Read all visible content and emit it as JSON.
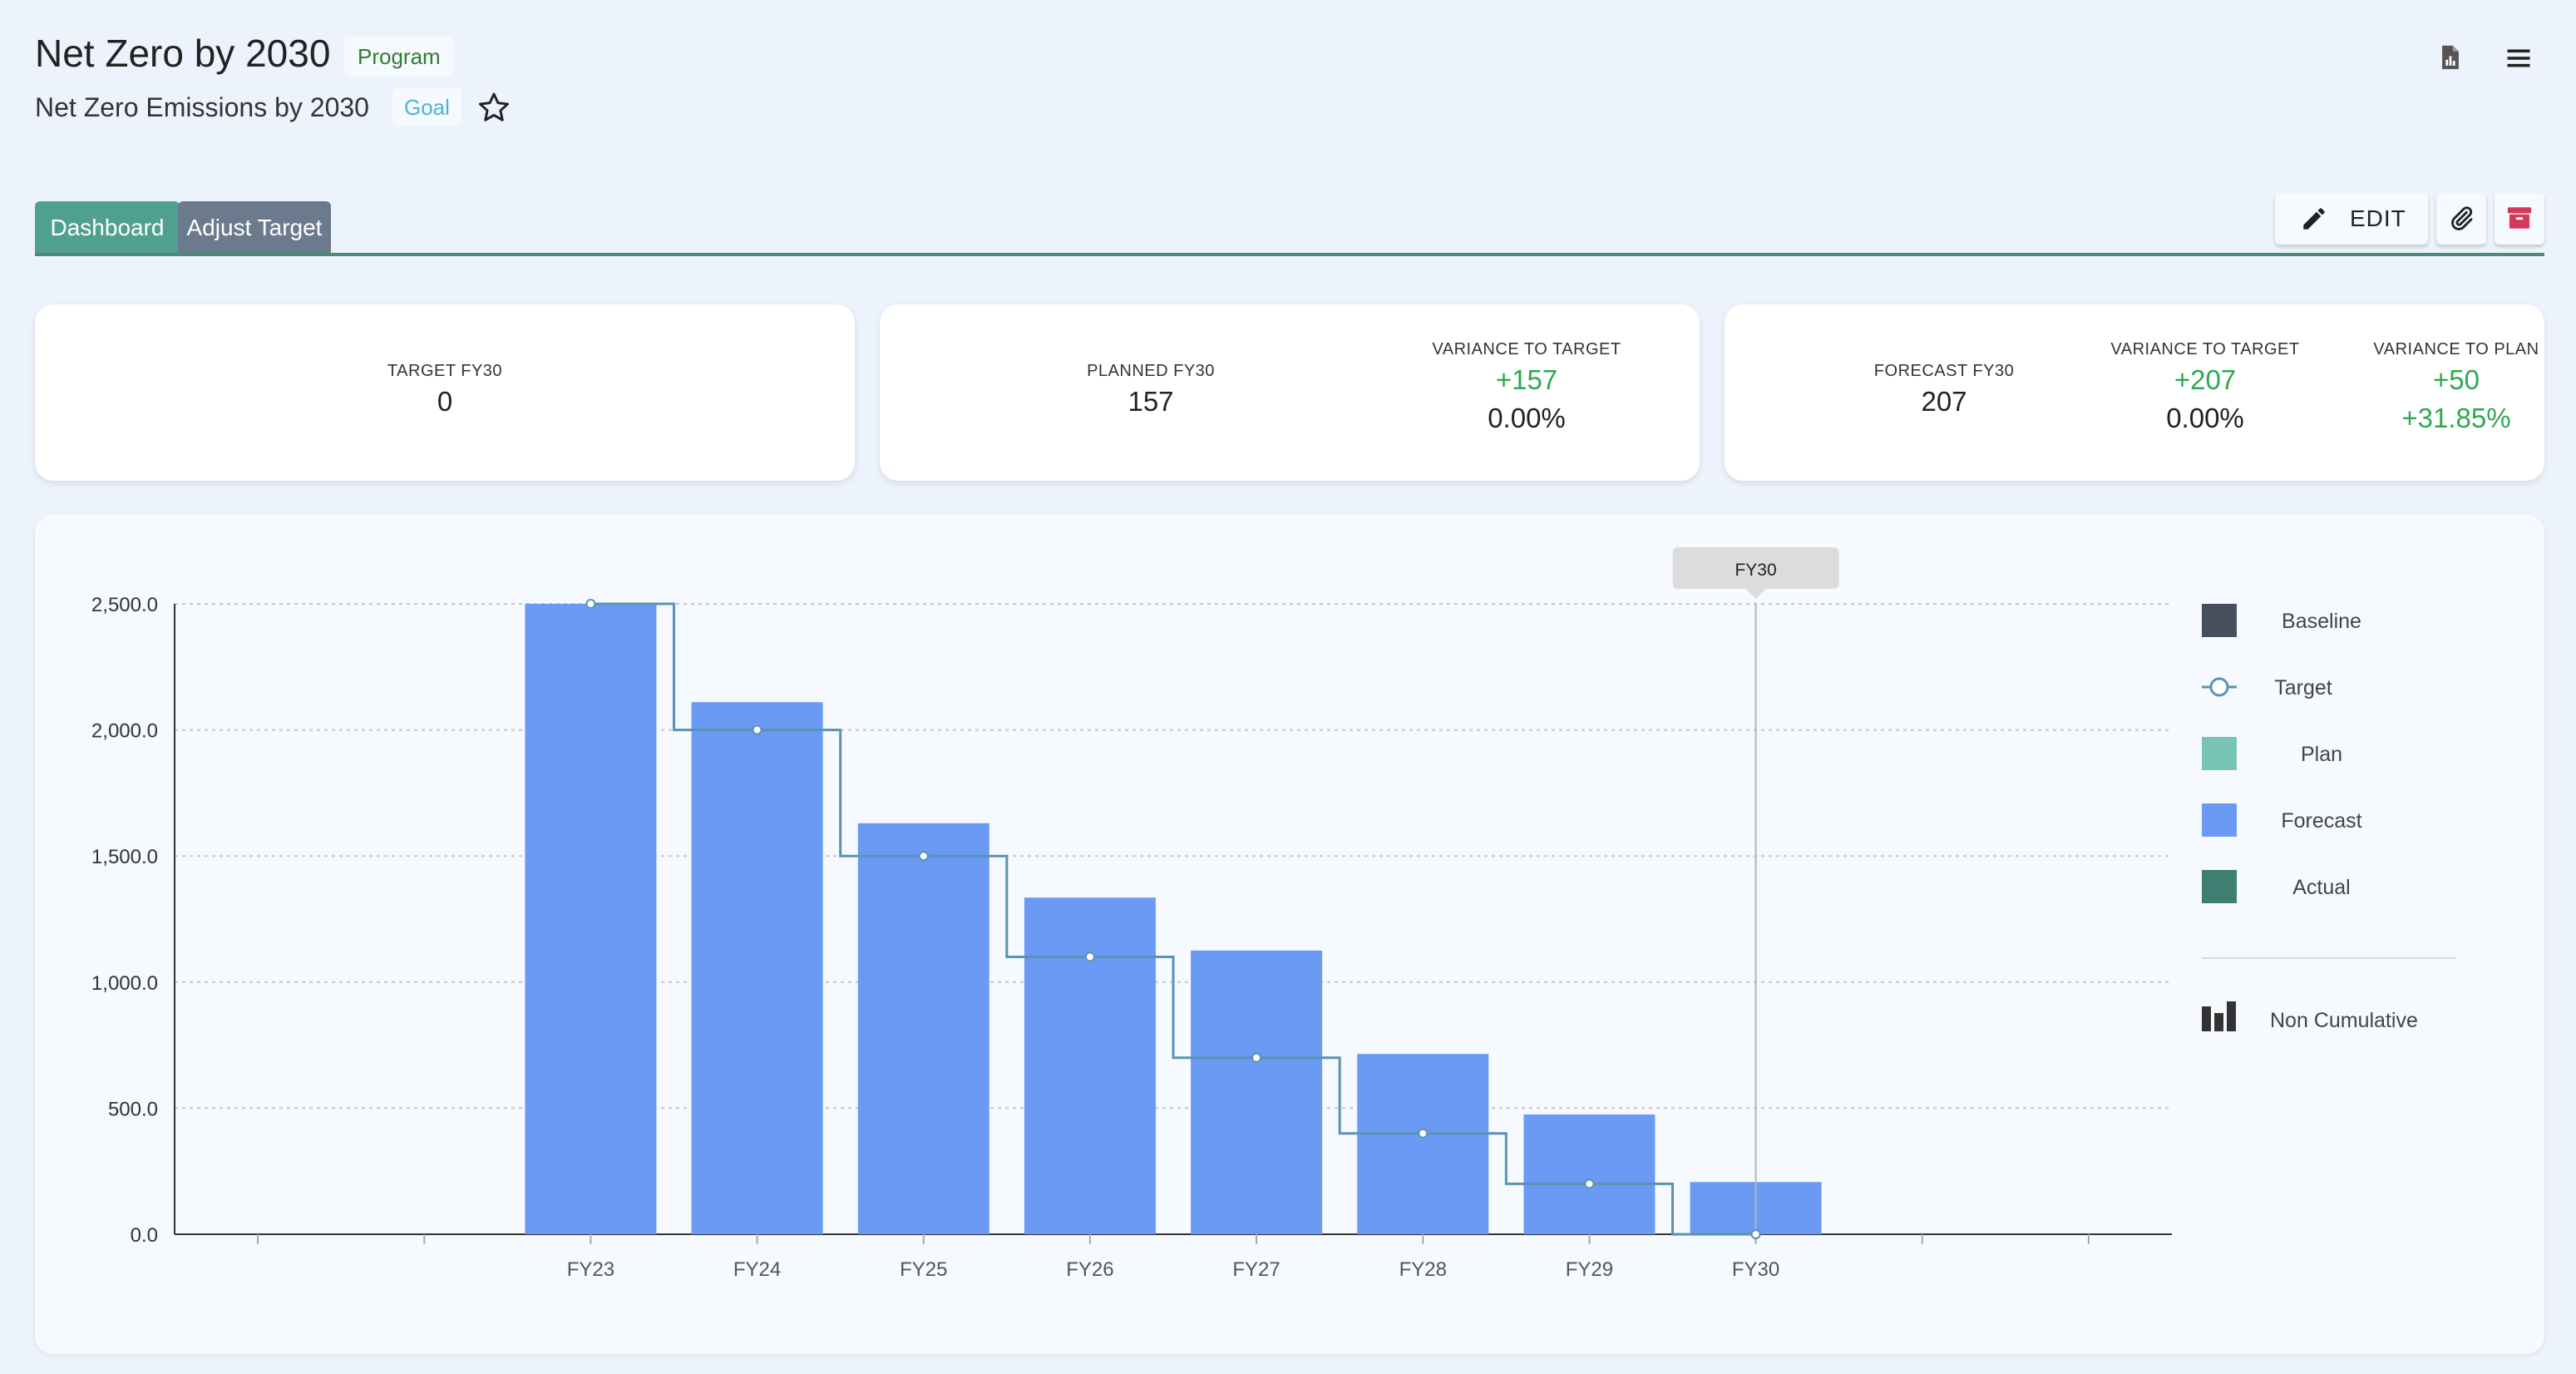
{
  "header": {
    "title": "Net Zero by 2030",
    "type_badge": "Program",
    "subtitle": "Net Zero Emissions by 2030",
    "subtitle_badge": "Goal"
  },
  "tabs": [
    {
      "label": "Dashboard",
      "active": true
    },
    {
      "label": "Adjust Target",
      "active": false
    }
  ],
  "actions": {
    "edit_label": "EDIT"
  },
  "kpi": {
    "target": {
      "label": "TARGET FY30",
      "value": "0"
    },
    "planned": {
      "label": "PLANNED FY30",
      "value": "157",
      "variance_label": "VARIANCE TO TARGET",
      "variance_value": "+157",
      "variance_pct": "0.00%"
    },
    "forecast": {
      "label": "FORECAST FY30",
      "value": "207",
      "variance_target_label": "VARIANCE TO TARGET",
      "variance_target_value": "+207",
      "variance_target_pct": "0.00%",
      "variance_plan_label": "VARIANCE TO PLAN",
      "variance_plan_value": "+50",
      "variance_plan_pct": "+31.85%"
    }
  },
  "colors": {
    "baseline": "#454f5e",
    "target": "#5b93b4",
    "plan": "#78c3b5",
    "forecast": "#6a9af3",
    "actual": "#3f7f72",
    "positive": "#2fa84f",
    "tab_active": "#4fa08e",
    "tab_inactive": "#6c7a8d"
  },
  "chart_data": {
    "type": "bar",
    "categories": [
      "",
      "",
      "FY23",
      "FY24",
      "FY25",
      "FY26",
      "FY27",
      "FY28",
      "FY29",
      "FY30",
      "",
      ""
    ],
    "series": [
      {
        "name": "Forecast",
        "kind": "bar",
        "values": [
          null,
          null,
          2500,
          2110,
          1630,
          1335,
          1125,
          715,
          475,
          207,
          null,
          null
        ]
      },
      {
        "name": "Target",
        "kind": "step-line",
        "values": [
          null,
          null,
          2500,
          2000,
          1500,
          1100,
          700,
          400,
          200,
          0,
          null,
          null
        ]
      }
    ],
    "legend": [
      {
        "name": "Baseline",
        "symbol": "square",
        "color_key": "baseline"
      },
      {
        "name": "Target",
        "symbol": "line-marker",
        "color_key": "target"
      },
      {
        "name": "Plan",
        "symbol": "square",
        "color_key": "plan"
      },
      {
        "name": "Forecast",
        "symbol": "square",
        "color_key": "forecast"
      },
      {
        "name": "Actual",
        "symbol": "square",
        "color_key": "actual"
      }
    ],
    "mode_toggle": "Non Cumulative",
    "highlight": "FY30",
    "yticks": [
      0,
      500,
      1000,
      1500,
      2000,
      2500
    ],
    "ytick_labels": [
      "0.0",
      "500.0",
      "1,000.0",
      "1,500.0",
      "2,000.0",
      "2,500.0"
    ],
    "ylim": [
      0,
      2500
    ],
    "grid": true,
    "legend_position": "right"
  }
}
